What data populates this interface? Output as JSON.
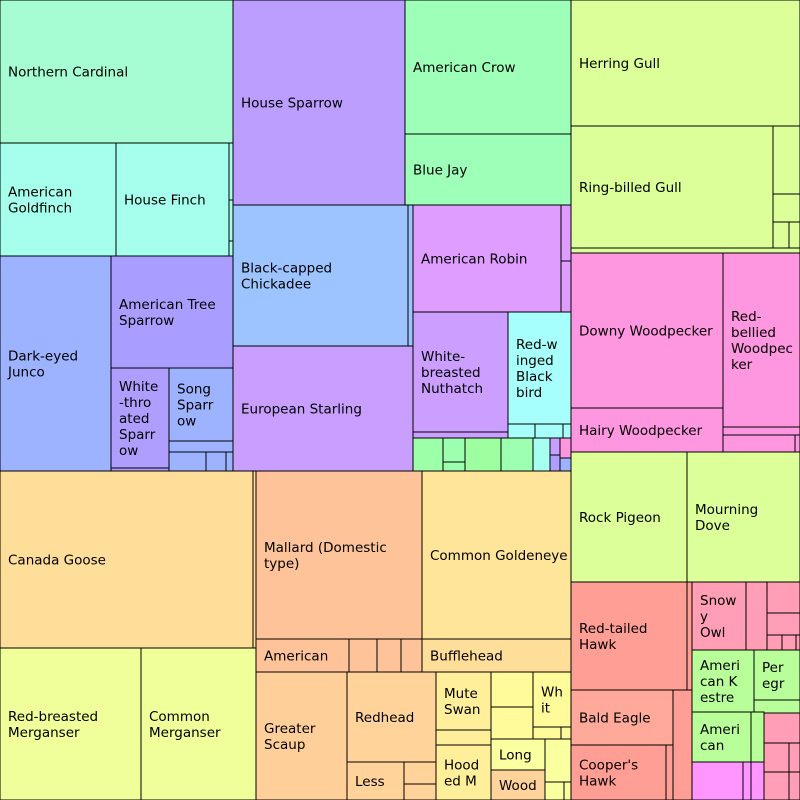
{
  "chart_data": {
    "type": "treemap",
    "nodes": [
      {
        "name": "Northern Cardinal",
        "lines": [
          "Northern Cardinal"
        ],
        "color": "#a6fdd3"
      },
      {
        "name": "House Sparrow",
        "lines": [
          "House Sparrow"
        ],
        "color": "#bb9eff"
      },
      {
        "name": "American Crow",
        "lines": [
          "American Crow"
        ],
        "color": "#9dffb8"
      },
      {
        "name": "Blue Jay",
        "lines": [
          "Blue Jay"
        ],
        "color": "#9dffb8"
      },
      {
        "name": "Herring Gull",
        "lines": [
          "Herring Gull"
        ],
        "color": "#dcff9a"
      },
      {
        "name": "Ring-billed Gull",
        "lines": [
          "Ring-billed Gull"
        ],
        "color": "#dcff9a"
      },
      {
        "name": "American Goldfinch",
        "lines": [
          "American",
          "Goldfinch"
        ],
        "color": "#a6ffec"
      },
      {
        "name": "House Finch",
        "lines": [
          "House Finch"
        ],
        "color": "#a6ffec"
      },
      {
        "name": "Black-capped Chickadee",
        "lines": [
          "Black-capped",
          "Chickadee"
        ],
        "color": "#9dc4ff"
      },
      {
        "name": "American Robin",
        "lines": [
          "American Robin"
        ],
        "color": "#df9eff"
      },
      {
        "name": "Downy Woodpecker",
        "lines": [
          "Downy Woodpecker"
        ],
        "color": "#ff96e0"
      },
      {
        "name": "Red-bellied Woodpecker",
        "lines": [
          "Red-",
          "bellied",
          "Woodpec",
          "ker"
        ],
        "color": "#ff96e0"
      },
      {
        "name": "Dark-eyed Junco",
        "lines": [
          "Dark-eyed",
          "Junco"
        ],
        "color": "#9db3ff"
      },
      {
        "name": "American Tree Sparrow",
        "lines": [
          "American Tree",
          "Sparrow"
        ],
        "color": "#a99eff"
      },
      {
        "name": "White-breasted Nuthatch",
        "lines": [
          "White-",
          "breasted",
          "Nuthatch"
        ],
        "color": "#cc9eff"
      },
      {
        "name": "Red-winged Blackbird",
        "lines": [
          "Red-w",
          "inged",
          "Black",
          "bird"
        ],
        "color": "#a6fffa"
      },
      {
        "name": "White-throated Sparrow",
        "lines": [
          "White",
          "-thro",
          "ated",
          "Sparr",
          "ow"
        ],
        "color": "#b09eff"
      },
      {
        "name": "Song Sparrow",
        "lines": [
          "Song",
          "Sparr",
          "ow"
        ],
        "color": "#9db3ff"
      },
      {
        "name": "European Starling",
        "lines": [
          "European Starling"
        ],
        "color": "#c89eff"
      },
      {
        "name": "Hairy Woodpecker",
        "lines": [
          "Hairy Woodpecker"
        ],
        "color": "#ff96e0"
      },
      {
        "name": "Canada Goose",
        "lines": [
          "Canada Goose"
        ],
        "color": "#ffde9a"
      },
      {
        "name": "Mallard (Domestic type)",
        "lines": [
          "Mallard (Domestic",
          "type)"
        ],
        "color": "#ffc39a"
      },
      {
        "name": "Common Goldeneye",
        "lines": [
          "Common Goldeneye"
        ],
        "color": "#ffe59a"
      },
      {
        "name": "Rock Pigeon",
        "lines": [
          "Rock Pigeon"
        ],
        "color": "#dcff9a"
      },
      {
        "name": "Mourning Dove",
        "lines": [
          "Mourning",
          "Dove"
        ],
        "color": "#dcff9a"
      },
      {
        "name": "Red-tailed Hawk",
        "lines": [
          "Red-tailed",
          "Hawk"
        ],
        "color": "#ff9e94"
      },
      {
        "name": "Snowy Owl",
        "lines": [
          "Snow",
          "y",
          "Owl"
        ],
        "color": "#ff9eb4"
      },
      {
        "name": "American",
        "lines": [
          "American"
        ],
        "color": "#ffc39a"
      },
      {
        "name": "Bufflehead",
        "lines": [
          "Bufflehead"
        ],
        "color": "#ffde9a"
      },
      {
        "name": "American Kestrel",
        "lines": [
          "Ameri",
          "can K",
          "estre"
        ],
        "color": "#b8ff9a"
      },
      {
        "name": "Peregrine Falcon",
        "lines": [
          "Per",
          "egr"
        ],
        "color": "#b8ff9a"
      },
      {
        "name": "Red-breasted Merganser",
        "lines": [
          "Red-breasted",
          "Merganser"
        ],
        "color": "#f1ff9a"
      },
      {
        "name": "Common Merganser",
        "lines": [
          "Common",
          "Merganser"
        ],
        "color": "#f1ff9a"
      },
      {
        "name": "Greater Scaup",
        "lines": [
          "Greater",
          "Scaup"
        ],
        "color": "#ffcf9a"
      },
      {
        "name": "Redhead",
        "lines": [
          "Redhead"
        ],
        "color": "#ffd39a"
      },
      {
        "name": "Mute Swan",
        "lines": [
          "Mute",
          "Swan"
        ],
        "color": "#ffef9a"
      },
      {
        "name": "White-winged Scoter",
        "lines": [
          "Wh",
          "it"
        ],
        "color": "#fffa9a"
      },
      {
        "name": "Bald Eagle",
        "lines": [
          "Bald Eagle"
        ],
        "color": "#ffa99a"
      },
      {
        "name": "American Black Duck",
        "lines": [
          "Ameri",
          "can"
        ],
        "color": "#b8ff9a"
      },
      {
        "name": "Long-tailed Duck",
        "lines": [
          "Long"
        ],
        "color": "#faffa0"
      },
      {
        "name": "Cooper's Hawk",
        "lines": [
          "Cooper's",
          "Hawk"
        ],
        "color": "#ff9e94"
      },
      {
        "name": "Hooded Merganser",
        "lines": [
          "Hood",
          "ed M"
        ],
        "color": "#ffef9a"
      },
      {
        "name": "Lesser Scaup",
        "lines": [
          "Less"
        ],
        "color": "#ffd39a"
      },
      {
        "name": "Wood Duck",
        "lines": [
          "Wood"
        ],
        "color": "#ffd39a"
      }
    ]
  }
}
